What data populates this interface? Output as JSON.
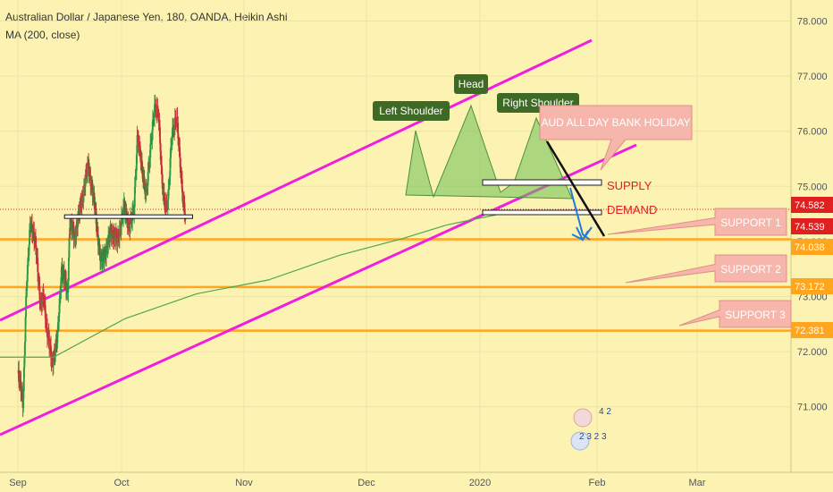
{
  "header": {
    "title": "Australian Dollar / Japanese Yen, 180, OANDA, Heikin Ashi",
    "indicator": "MA (200, close)"
  },
  "colors": {
    "background": "#fcf3b2",
    "grid": "#ece3a6",
    "up_candle": "#2e9a46",
    "down_candle": "#c62f36",
    "channel": "#f01fe0",
    "ma_line": "#4fa750",
    "support_line": "#ffa51e",
    "pattern_fill": "#6cbf55",
    "pattern_label": "#3f6a26",
    "callout": "#f6b6ac",
    "trend_arrow": "#1f7ad8",
    "red_text": "#e02020"
  },
  "chart_data": {
    "type": "candlestick",
    "title": "Australian Dollar / Japanese Yen, 180, OANDA, Heikin Ashi",
    "ylim": [
      70.3,
      78.25
    ],
    "y_ticks": [
      71.0,
      72.0,
      73.0,
      74.0,
      75.0,
      76.0,
      77.0,
      78.0
    ],
    "y_tick_labels": [
      "71.000",
      "72.000",
      "73.000",
      "74.000",
      "75.000",
      "76.000",
      "77.000",
      "78.000"
    ],
    "x_ticks": [
      "Sep",
      "Oct",
      "Nov",
      "Dec",
      "2020",
      "Feb",
      "Mar"
    ],
    "price_path": [
      {
        "t": 0.0,
        "price": 71.6
      },
      {
        "t": 0.05,
        "price": 71.1
      },
      {
        "t": 0.08,
        "price": 73.0
      },
      {
        "t": 0.12,
        "price": 74.4
      },
      {
        "t": 0.18,
        "price": 73.8
      },
      {
        "t": 0.22,
        "price": 72.8
      },
      {
        "t": 0.25,
        "price": 73.0
      },
      {
        "t": 0.28,
        "price": 72.4
      },
      {
        "t": 0.33,
        "price": 71.8
      },
      {
        "t": 0.38,
        "price": 72.2
      },
      {
        "t": 0.42,
        "price": 73.5
      },
      {
        "t": 0.48,
        "price": 73.1
      },
      {
        "t": 0.5,
        "price": 74.3
      },
      {
        "t": 0.55,
        "price": 74.1
      },
      {
        "t": 0.62,
        "price": 74.8
      },
      {
        "t": 0.68,
        "price": 75.4
      },
      {
        "t": 0.72,
        "price": 74.9
      },
      {
        "t": 0.75,
        "price": 74.5
      },
      {
        "t": 0.8,
        "price": 73.6
      },
      {
        "t": 0.86,
        "price": 73.9
      },
      {
        "t": 0.9,
        "price": 74.2
      },
      {
        "t": 0.96,
        "price": 74.0
      },
      {
        "t": 1.02,
        "price": 74.6
      },
      {
        "t": 1.06,
        "price": 74.3
      },
      {
        "t": 1.1,
        "price": 74.5
      },
      {
        "t": 1.13,
        "price": 76.0
      },
      {
        "t": 1.17,
        "price": 75.2
      },
      {
        "t": 1.2,
        "price": 74.9
      },
      {
        "t": 1.23,
        "price": 75.5
      },
      {
        "t": 1.27,
        "price": 76.5
      },
      {
        "t": 1.3,
        "price": 76.3
      },
      {
        "t": 1.33,
        "price": 75.1
      },
      {
        "t": 1.36,
        "price": 74.6
      },
      {
        "t": 1.38,
        "price": 74.7
      },
      {
        "t": 1.41,
        "price": 76.0
      },
      {
        "t": 1.45,
        "price": 76.2
      },
      {
        "t": 1.48,
        "price": 75.4
      },
      {
        "t": 1.5,
        "price": 74.8
      },
      {
        "t": 1.52,
        "price": 74.4
      }
    ],
    "price_labels": [
      {
        "value": 74.582,
        "text": "74.582",
        "color": "#e02020",
        "kind": "last-price"
      },
      {
        "value": 74.539,
        "text": "74.539",
        "color": "#e02020",
        "kind": "ma-value"
      },
      {
        "value": 74.038,
        "text": "74.038",
        "color": "#ffa51e",
        "kind": "support"
      },
      {
        "value": 73.172,
        "text": "73.172",
        "color": "#ffa51e",
        "kind": "support"
      },
      {
        "value": 72.381,
        "text": "72.381",
        "color": "#ffa51e",
        "kind": "support"
      }
    ],
    "support_levels": [
      74.038,
      73.172,
      72.381
    ],
    "resistance_line": {
      "price": 74.45,
      "t_range": [
        0.45,
        1.58
      ]
    },
    "supply_zone": {
      "price_range": [
        74.95,
        75.05
      ],
      "t_range": [
        1.32,
        1.55
      ]
    },
    "demand_zone": {
      "price_range": [
        74.55,
        74.65
      ],
      "t_range": [
        1.32,
        1.55
      ]
    },
    "annotations": {
      "head_and_shoulders": [
        "Left Shoulder",
        "Head",
        "Right Shoulder"
      ],
      "event_note": "AUD ALL DAY BANK HOLIDAY",
      "zone_labels": [
        "SUPPLY",
        "DEMAND"
      ],
      "support_labels": [
        "SUPPORT 1",
        "SUPPORT 2",
        "SUPPORT 3"
      ]
    },
    "badges": [
      "4 2",
      "2 3 2 3"
    ]
  }
}
